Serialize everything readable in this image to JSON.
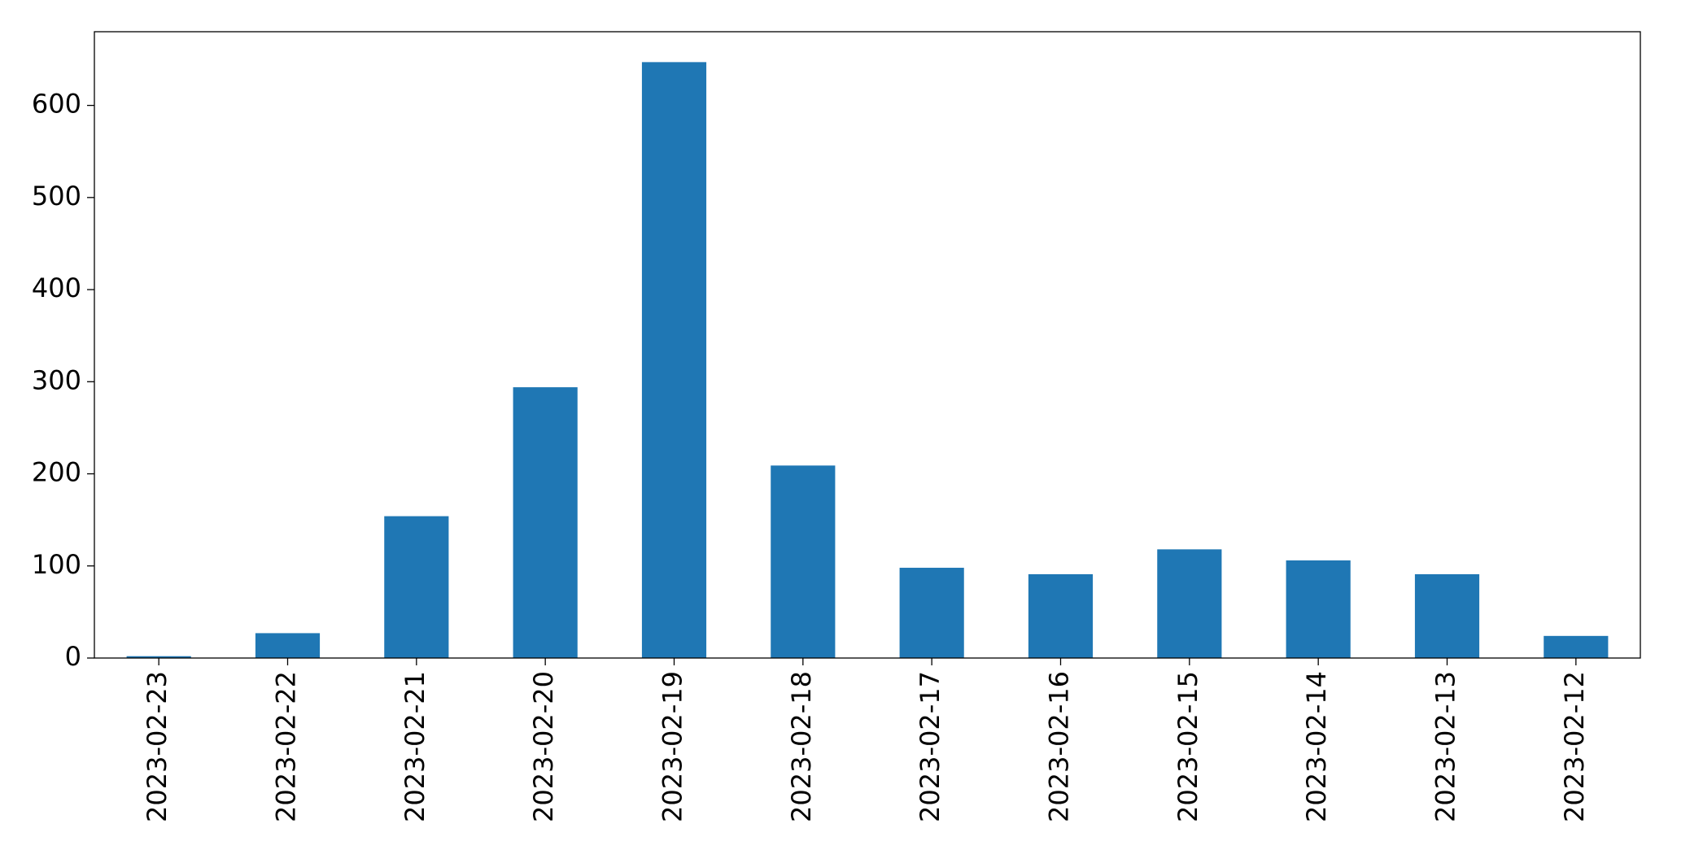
{
  "chart_data": {
    "type": "bar",
    "categories": [
      "2023-02-23",
      "2023-02-22",
      "2023-02-21",
      "2023-02-20",
      "2023-02-19",
      "2023-02-18",
      "2023-02-17",
      "2023-02-16",
      "2023-02-15",
      "2023-02-14",
      "2023-02-13",
      "2023-02-12"
    ],
    "values": [
      2,
      27,
      154,
      294,
      647,
      209,
      98,
      91,
      118,
      106,
      91,
      24
    ],
    "color": "#1f77b4",
    "ylim": [
      0,
      680
    ],
    "yticks": [
      0,
      100,
      200,
      300,
      400,
      500,
      600
    ],
    "grid": false
  }
}
